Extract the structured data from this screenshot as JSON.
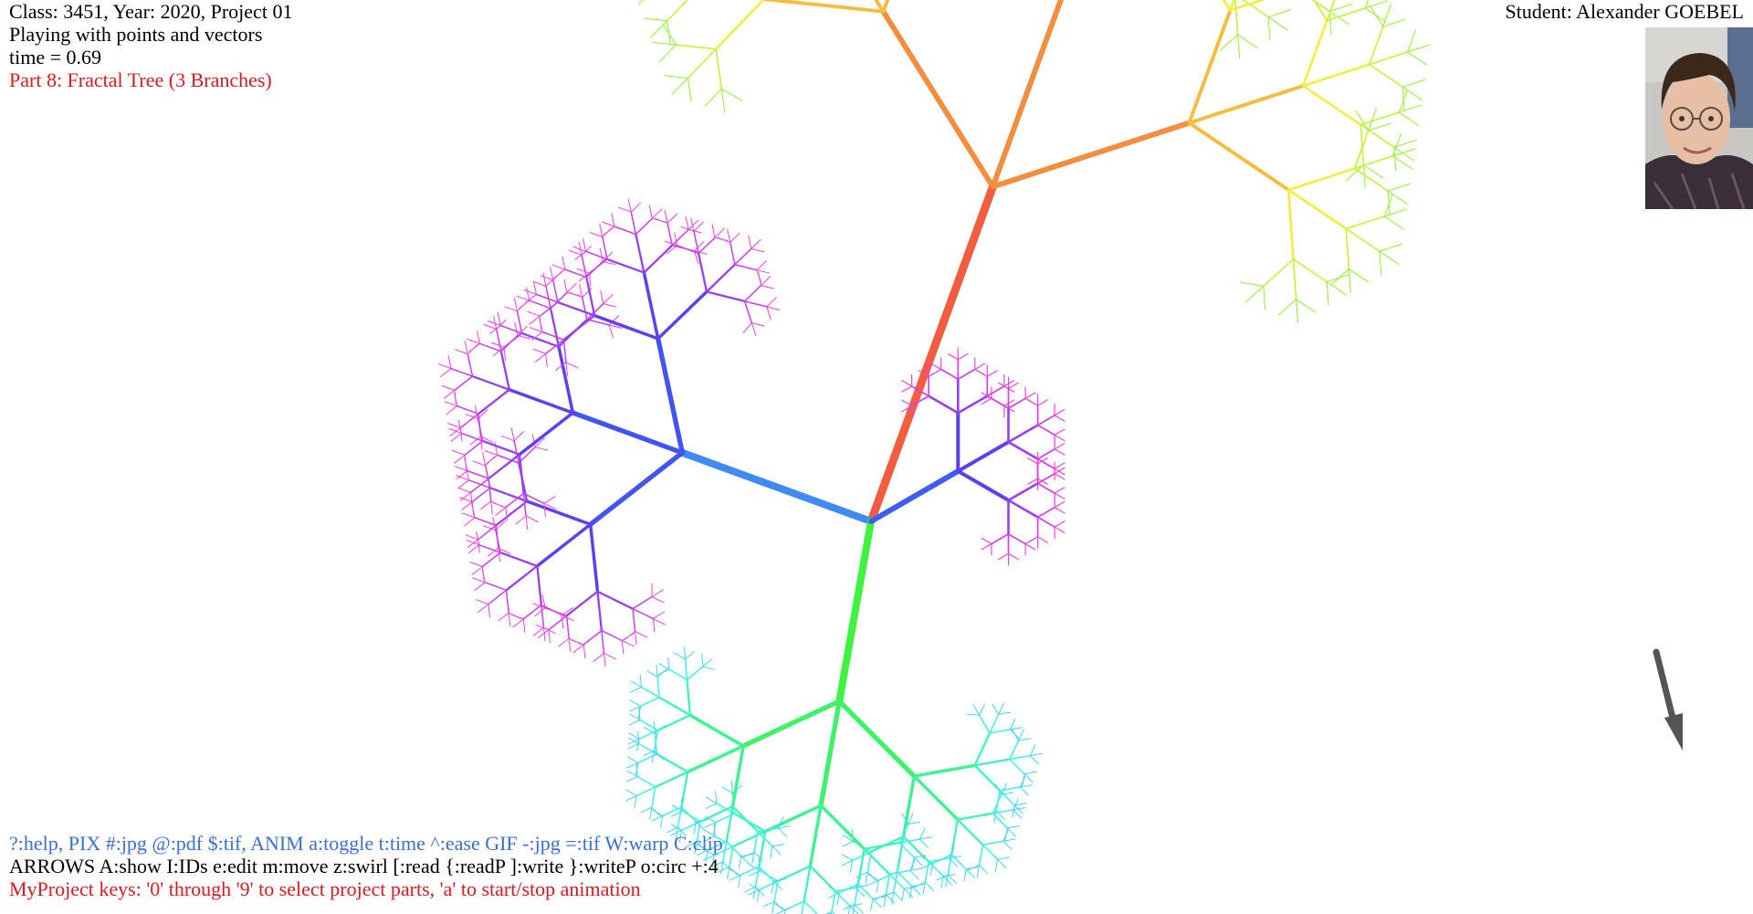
{
  "header": {
    "course_line": "Class: 3451, Year: 2020, Project 01",
    "subtitle": "Playing with points and vectors",
    "time_readout": "time = 0.69",
    "part_title": "Part 8: Fractal Tree (3 Branches)",
    "student": "Student: Alexander GOEBEL"
  },
  "footer": {
    "help_line": "?:help, PIX #:jpg @:pdf $:tif, ANIM a:toggle t:time ^:ease GIF -:jpg =:tif W:warp C:clip",
    "keys_line": "ARROWS A:show I:IDs e:edit m:move z:swirl [:read {:readP ]:write }:writeP o:circ +:4",
    "project_line": "MyProject keys: '0' through '9' to select project parts, 'a' to start/stop animation"
  },
  "colors": {
    "help_text": "#3a6fd8",
    "part_text": "#e0181e",
    "normal_text": "#000000",
    "arrow": "#555555",
    "background": "#ffffff"
  },
  "icons": {
    "student_photo": "student-portrait-photo",
    "arrow": "pointer-arrow-icon"
  }
}
